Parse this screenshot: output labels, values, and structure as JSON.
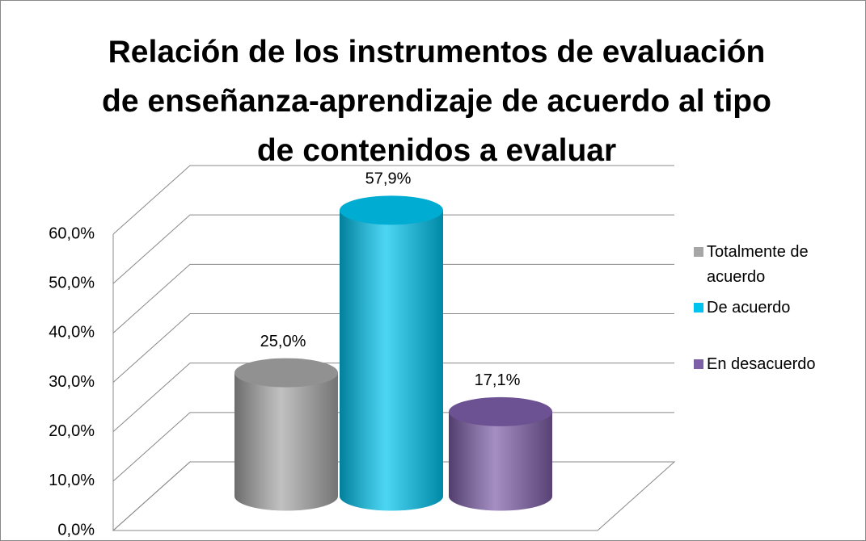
{
  "chart_data": {
    "type": "bar",
    "title": "Relación de los instrumentos de evaluación de enseñanza-aprendizaje de acuerdo al tipo de contenidos a evaluar",
    "series": [
      {
        "name": "Totalmente de acuerdo",
        "color": "#a6a6a6",
        "values": [
          25.0
        ],
        "value_labels": [
          "25,0%"
        ]
      },
      {
        "name": "De acuerdo",
        "color": "#00c4ee",
        "values": [
          57.9
        ],
        "value_labels": [
          "57,9%"
        ]
      },
      {
        "name": "En desacuerdo",
        "color": "#7d5ea8",
        "values": [
          17.1
        ],
        "value_labels": [
          "17,1%"
        ]
      }
    ],
    "ylim": [
      0,
      60
    ],
    "yticks": [
      {
        "value": 0,
        "label": "0,0%"
      },
      {
        "value": 10,
        "label": "10,0%"
      },
      {
        "value": 20,
        "label": "20,0%"
      },
      {
        "value": 30,
        "label": "30,0%"
      },
      {
        "value": 40,
        "label": "40,0%"
      },
      {
        "value": 50,
        "label": "50,0%"
      },
      {
        "value": 60,
        "label": "60,0%"
      }
    ],
    "grid": true,
    "legend": "right"
  }
}
